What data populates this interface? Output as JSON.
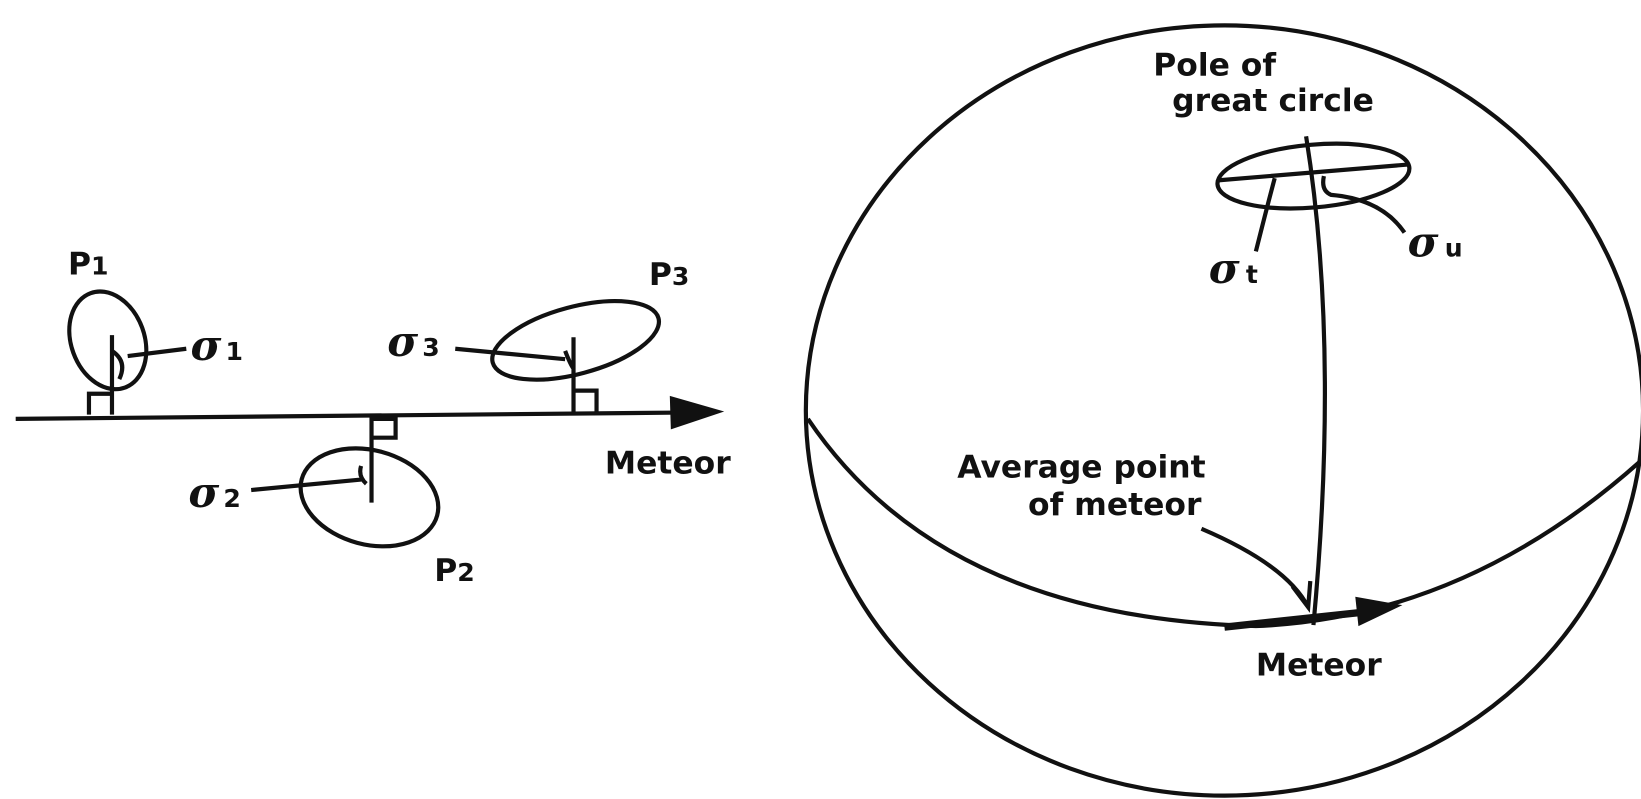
{
  "left_panel": {
    "points": [
      {
        "name": "P",
        "sub": "1",
        "sigma": "σ",
        "sigma_sub": "1"
      },
      {
        "name": "P",
        "sub": "2",
        "sigma": "σ",
        "sigma_sub": "2"
      },
      {
        "name": "P",
        "sub": "3",
        "sigma": "σ",
        "sigma_sub": "3"
      }
    ],
    "axis_label": "Meteor"
  },
  "right_panel": {
    "pole_label": [
      "Pole of",
      "great circle"
    ],
    "sigma_t": {
      "sigma": "σ",
      "sub": "t"
    },
    "sigma_u": {
      "sigma": "σ",
      "sub": "u"
    },
    "average_label": [
      "Average point",
      "of meteor"
    ],
    "axis_label": "Meteor"
  }
}
